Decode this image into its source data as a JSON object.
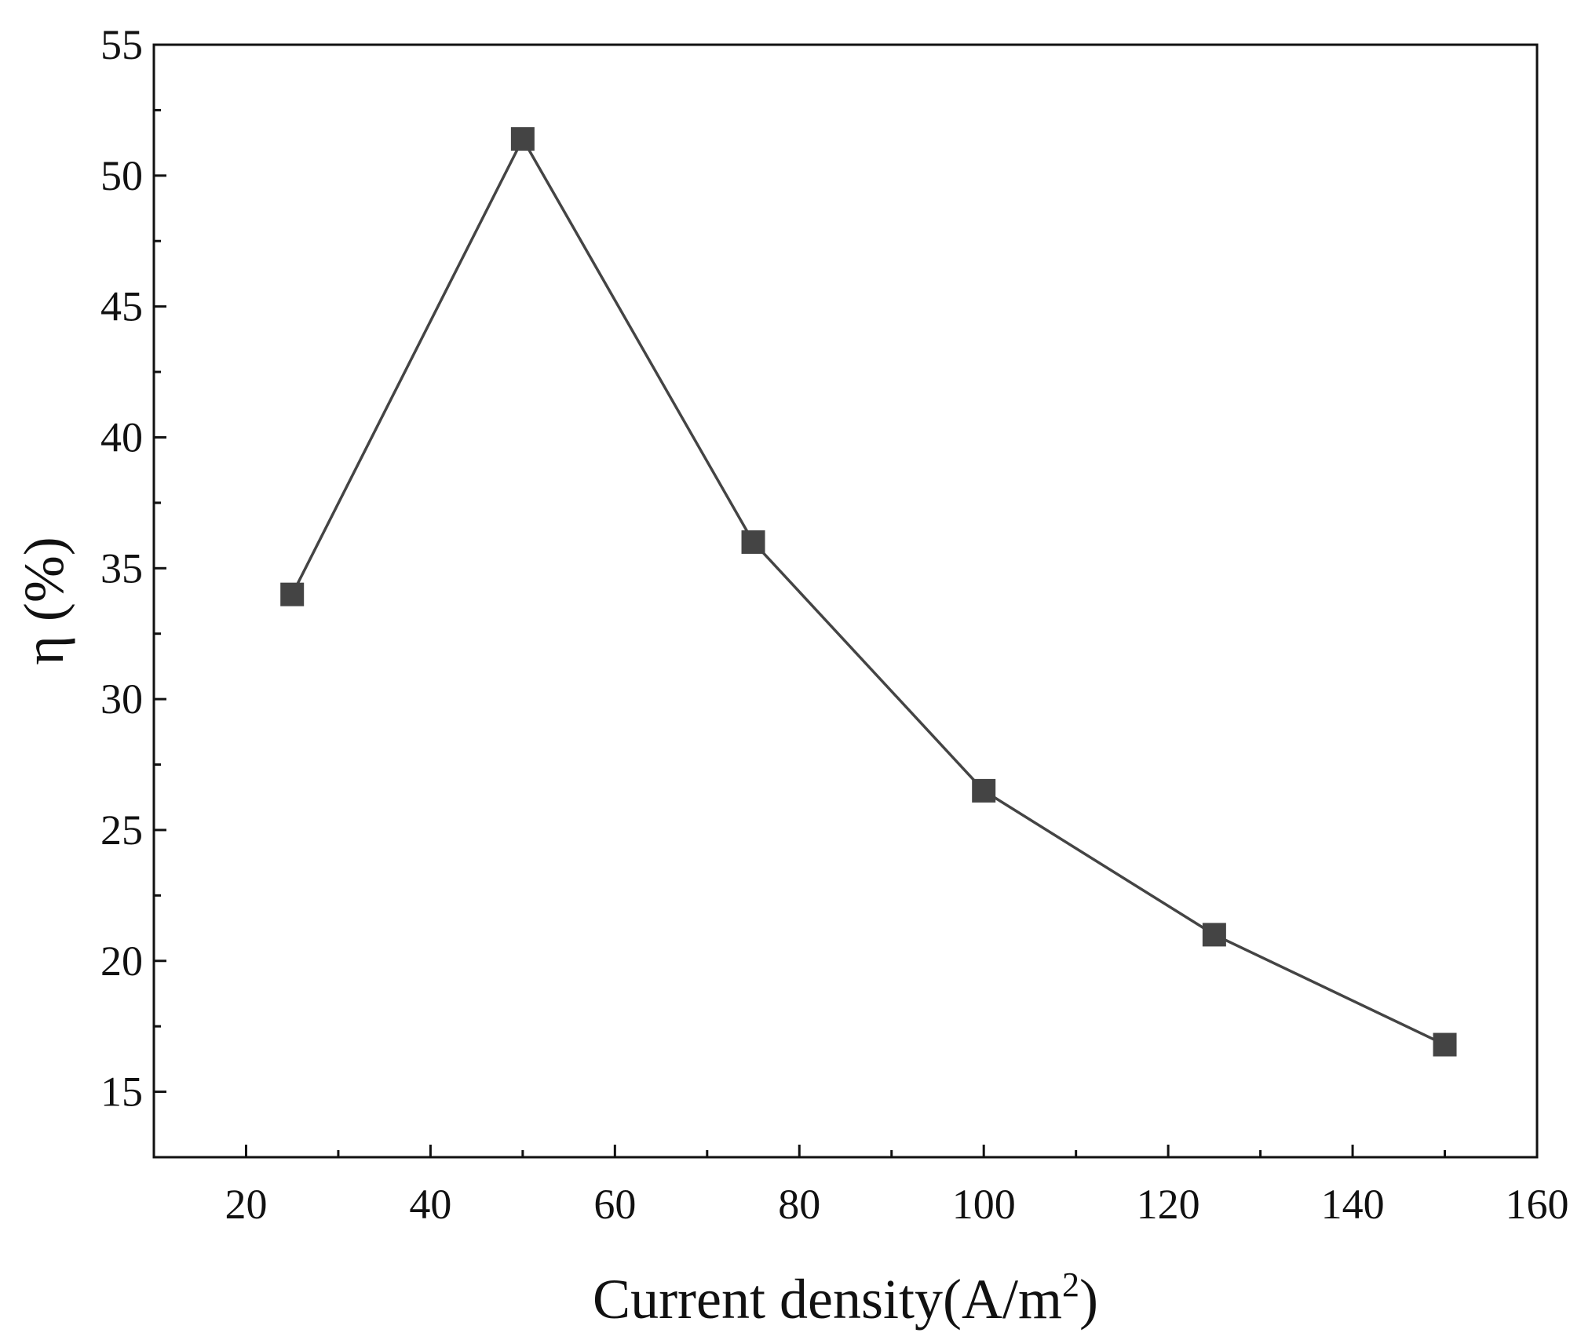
{
  "chart_data": {
    "type": "line",
    "title": "",
    "xlabel": "Current density(A/m2)",
    "xlabel_main": "Current density(A/m",
    "xlabel_sup": "2",
    "xlabel_close": ")",
    "ylabel": "η (%)",
    "xlim": [
      10,
      160
    ],
    "ylim": [
      12.5,
      55
    ],
    "x_ticks": [
      20,
      40,
      60,
      80,
      100,
      120,
      140,
      160
    ],
    "y_ticks": [
      15,
      20,
      25,
      30,
      35,
      40,
      45,
      50,
      55
    ],
    "x_minor_ticks": [
      30,
      50,
      70,
      90,
      110,
      130,
      150
    ],
    "y_minor_ticks": [
      17.5,
      22.5,
      27.5,
      32.5,
      37.5,
      42.5,
      47.5,
      52.5
    ],
    "grid": false,
    "marker": "square",
    "line_color": "#444444",
    "marker_color": "#444444",
    "series": [
      {
        "x": [
          25,
          50,
          75,
          100,
          125,
          150
        ],
        "values": [
          34.0,
          51.4,
          36.0,
          26.5,
          21.0,
          16.8
        ]
      }
    ]
  }
}
